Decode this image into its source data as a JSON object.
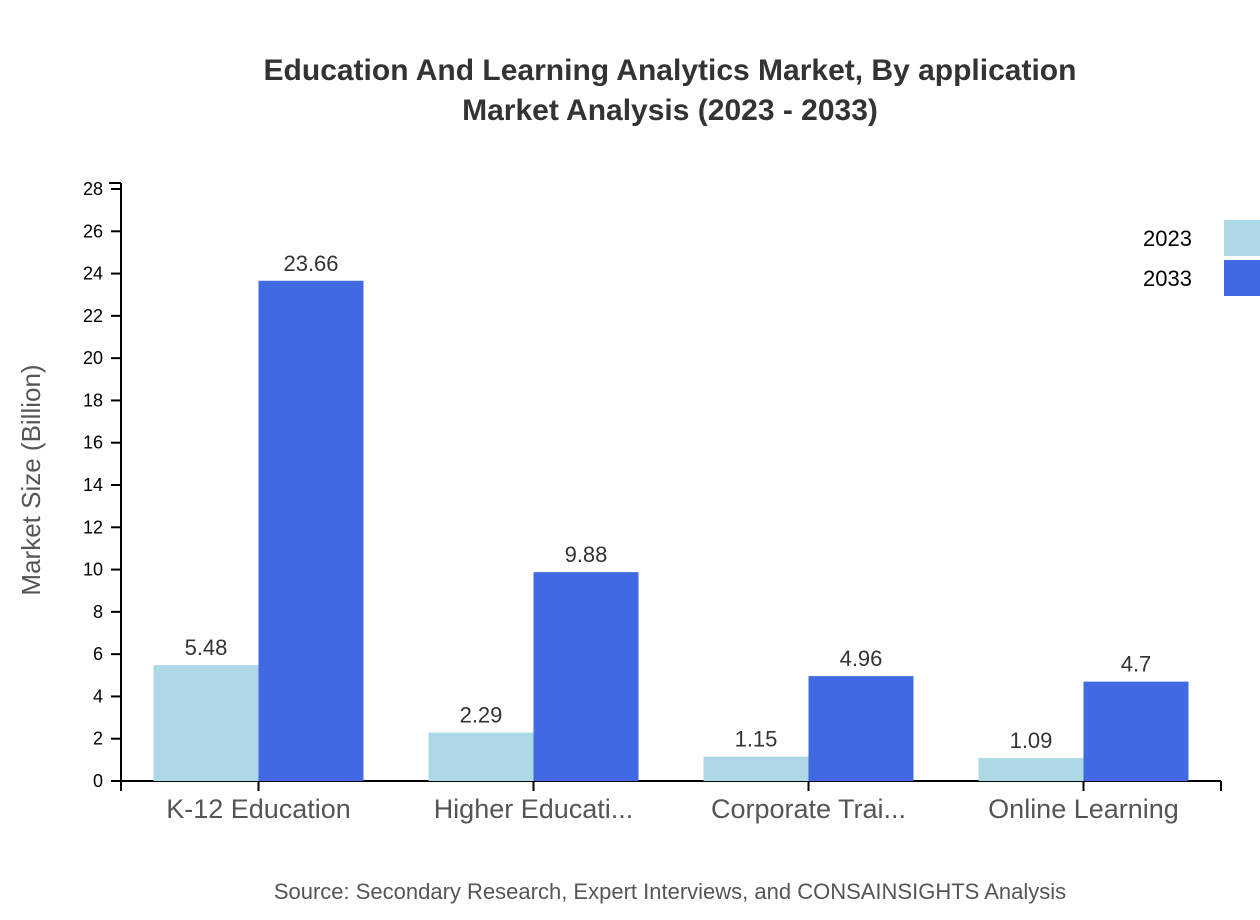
{
  "chart_data": {
    "type": "bar",
    "title_lines": [
      "Education And Learning Analytics Market, By application",
      "Market Analysis (2023 - 2033)"
    ],
    "xlabel": "",
    "ylabel": "Market Size (Billion)",
    "ylim": [
      0,
      28
    ],
    "yticks": [
      0,
      2,
      4,
      6,
      8,
      10,
      12,
      14,
      16,
      18,
      20,
      22,
      24,
      26,
      28
    ],
    "categories": [
      "K-12 Education",
      "Higher Educati...",
      "Corporate Trai...",
      "Online Learning"
    ],
    "series": [
      {
        "name": "2023",
        "color": "#add8e6",
        "values": [
          5.48,
          2.29,
          1.15,
          1.09
        ]
      },
      {
        "name": "2033",
        "color": "#4169e1",
        "values": [
          23.66,
          9.88,
          4.96,
          4.7
        ]
      }
    ],
    "legend_position": "top-right",
    "grid": false,
    "source": "Source: Secondary Research, Expert Interviews, and CONSAINSIGHTS Analysis"
  }
}
